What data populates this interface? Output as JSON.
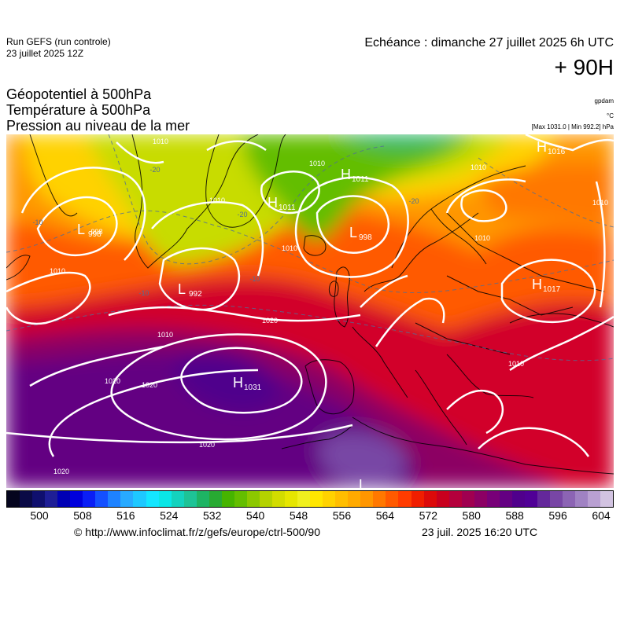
{
  "header": {
    "run_model": "Run GEFS (run controle)",
    "run_date": "23 juillet 2025 12Z",
    "valid_time": "Echéance : dimanche 27 juillet 2025 6h UTC",
    "lead_time": "+ 90H"
  },
  "titles": {
    "line1": "Géopotentiel à 500hPa",
    "line2": "Température à 500hPa",
    "line3": "Pression au niveau de la mer"
  },
  "units": {
    "geopotential": "gpdam",
    "temperature": "°C",
    "pressure_extremes": "[Max 1031.0 | Min 992.2] hPa"
  },
  "pressure_centers": [
    {
      "type": "H",
      "value": "1031"
    },
    {
      "type": "H",
      "value": "1017"
    },
    {
      "type": "H",
      "value": "1016"
    },
    {
      "type": "H",
      "value": "1011"
    },
    {
      "type": "H",
      "value": "1011"
    },
    {
      "type": "L",
      "value": "998"
    },
    {
      "type": "L",
      "value": "998"
    },
    {
      "type": "L",
      "value": "992"
    },
    {
      "type": "L",
      "value": ""
    }
  ],
  "isobar_labels": [
    "1010",
    "1010",
    "1010",
    "1010",
    "1010",
    "1010",
    "1010",
    "1010",
    "1010",
    "1020",
    "1020",
    "1020",
    "1020",
    "1020",
    "1010",
    "998"
  ],
  "temperature_labels": [
    "-20",
    "-20",
    "-20",
    "-10",
    "-10",
    "-10"
  ],
  "colorbar": {
    "colors": [
      "#05051e",
      "#0a0a46",
      "#0f0f6e",
      "#1e1e96",
      "#0000b4",
      "#0000dc",
      "#0a1ef5",
      "#1450ff",
      "#1e82ff",
      "#28aaff",
      "#1ec8ff",
      "#14e6ff",
      "#0ae6e6",
      "#14d2be",
      "#1ec396",
      "#1eb464",
      "#28aa32",
      "#46b400",
      "#64be00",
      "#8cc800",
      "#b4d200",
      "#d2dc00",
      "#e6e600",
      "#f0f01e",
      "#ffe600",
      "#ffd200",
      "#ffbe00",
      "#ffaa00",
      "#ff9600",
      "#ff7800",
      "#ff5a00",
      "#ff3c00",
      "#f01e00",
      "#dc0a0a",
      "#c8001e",
      "#b4003c",
      "#a00050",
      "#8c0064",
      "#780078",
      "#640082",
      "#50008c",
      "#500096",
      "#64289b",
      "#7846a5",
      "#8c64b4",
      "#a082c3",
      "#b9a0d2",
      "#d2c3e1"
    ],
    "tick_labels": [
      "500",
      "508",
      "516",
      "524",
      "532",
      "540",
      "548",
      "556",
      "564",
      "572",
      "580",
      "588",
      "596",
      "604"
    ]
  },
  "footer": {
    "source_url": "© http://www.infoclimat.fr/z/gefs/europe/ctrl-500/90",
    "generated": "23 juil. 2025 16:20 UTC"
  }
}
